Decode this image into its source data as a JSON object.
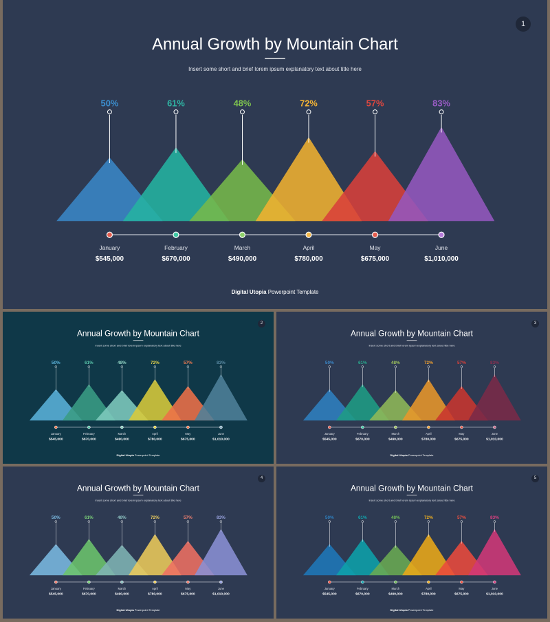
{
  "slides": [
    {
      "number": "1",
      "background": "#2e3a52",
      "title": "Annual Growth by Mountain Chart",
      "subtitle": "Insert some short and brief lorem ipsum explanatory text about title here",
      "footer_bold": "Digital Utopia",
      "footer_rest": " Powerpoint Template",
      "pct_colors": [
        "#3c8fcf",
        "#2fb5a4",
        "#7cc04f",
        "#f2b234",
        "#e0473f",
        "#9b5cc6"
      ],
      "tri_colors": [
        "#3a86c6",
        "#24b3a0",
        "#76b84a",
        "#f0b030",
        "#d8403a",
        "#9458be"
      ],
      "dot_colors": [
        "#e35b4d",
        "#3fc7a4",
        "#8dd06a",
        "#f5b84a",
        "#e35b4d",
        "#b57ad9"
      ],
      "chart_data": {
        "type": "area",
        "categories": [
          "January",
          "February",
          "March",
          "April",
          "May",
          "June"
        ],
        "values_pct": [
          50,
          61,
          48,
          72,
          57,
          83
        ],
        "percent_labels": [
          "50%",
          "61%",
          "48%",
          "72%",
          "57%",
          "83%"
        ],
        "amounts": [
          "$545,000",
          "$670,000",
          "$490,000",
          "$780,000",
          "$675,000",
          "$1,010,000"
        ],
        "ylim": [
          0,
          100
        ]
      }
    },
    {
      "number": "2",
      "background": "#0f3848",
      "title": "Annual Growth by Mountain Chart",
      "subtitle": "Insert some short and brief lorem ipsum explanatory text about title here",
      "footer_bold": "Digital Utopia",
      "footer_rest": " Powerpoint Template",
      "pct_colors": [
        "#5ab0d8",
        "#58c2a8",
        "#8fd1c2",
        "#e3d24a",
        "#f07a50",
        "#5a8aa4"
      ],
      "tri_colors": [
        "#5ab0d8",
        "#3a9c84",
        "#7ec9bd",
        "#d8c93a",
        "#ee7048",
        "#4f7f98"
      ],
      "dot_colors": [
        "#f07a50",
        "#58c2a8",
        "#8fd1c2",
        "#e3d24a",
        "#f07a50",
        "#8fb4c8"
      ],
      "chart_data": {
        "type": "area",
        "categories": [
          "January",
          "February",
          "March",
          "April",
          "May",
          "June"
        ],
        "values_pct": [
          50,
          61,
          48,
          72,
          57,
          83
        ],
        "percent_labels": [
          "50%",
          "61%",
          "48%",
          "72%",
          "57%",
          "83%"
        ],
        "amounts": [
          "$545,000",
          "$670,000",
          "$490,000",
          "$780,000",
          "$675,000",
          "$1,010,000"
        ],
        "ylim": [
          0,
          100
        ]
      }
    },
    {
      "number": "3",
      "background": "#2e3a52",
      "title": "Annual Growth by Mountain Chart",
      "subtitle": "Insert some short and brief lorem ipsum explanatory text about title here",
      "footer_bold": "Digital Utopia",
      "footer_rest": " Powerpoint Template",
      "pct_colors": [
        "#3a86c6",
        "#2aa98e",
        "#9cc05c",
        "#f0a030",
        "#d8403a",
        "#8a3050"
      ],
      "tri_colors": [
        "#2f7fbf",
        "#1f9c84",
        "#90b858",
        "#e8962a",
        "#c8352f",
        "#7a2a48"
      ],
      "dot_colors": [
        "#e35b4d",
        "#3fc7a4",
        "#9cc05c",
        "#f0a030",
        "#e35b4d",
        "#c86a8a"
      ],
      "chart_data": {
        "type": "area",
        "categories": [
          "January",
          "February",
          "March",
          "April",
          "May",
          "June"
        ],
        "values_pct": [
          50,
          61,
          48,
          72,
          57,
          83
        ],
        "percent_labels": [
          "50%",
          "61%",
          "48%",
          "72%",
          "57%",
          "83%"
        ],
        "amounts": [
          "$545,000",
          "$670,000",
          "$490,000",
          "$780,000",
          "$675,000",
          "$1,010,000"
        ],
        "ylim": [
          0,
          100
        ]
      }
    },
    {
      "number": "4",
      "background": "#2e3a52",
      "title": "Annual Growth by Mountain Chart",
      "subtitle": "Insert some short and brief lorem ipsum explanatory text about title here",
      "footer_bold": "Digital Utopia",
      "footer_rest": " Powerpoint Template",
      "pct_colors": [
        "#7ab8e0",
        "#7cd27a",
        "#8cc0c0",
        "#f0d060",
        "#f08070",
        "#9aa4e0"
      ],
      "tri_colors": [
        "#7ab8e0",
        "#6cc46c",
        "#80b4b4",
        "#ecc95a",
        "#ee7062",
        "#8a90d4"
      ],
      "dot_colors": [
        "#f08070",
        "#7cd27a",
        "#8cc0c0",
        "#f0d060",
        "#f08070",
        "#9aa4e0"
      ],
      "chart_data": {
        "type": "area",
        "categories": [
          "January",
          "February",
          "March",
          "April",
          "May",
          "June"
        ],
        "values_pct": [
          50,
          61,
          48,
          72,
          57,
          83
        ],
        "percent_labels": [
          "50%",
          "61%",
          "48%",
          "72%",
          "57%",
          "83%"
        ],
        "amounts": [
          "$545,000",
          "$670,000",
          "$490,000",
          "$780,000",
          "$675,000",
          "$1,010,000"
        ],
        "ylim": [
          0,
          100
        ]
      }
    },
    {
      "number": "5",
      "background": "#2e3a52",
      "title": "Annual Growth by Mountain Chart",
      "subtitle": "Insert some short and brief lorem ipsum explanatory text about title here",
      "footer_bold": "Digital Utopia",
      "footer_rest": " Powerpoint Template",
      "pct_colors": [
        "#2f7fbf",
        "#10a7b0",
        "#70b858",
        "#f0b020",
        "#f05040",
        "#d84080"
      ],
      "tri_colors": [
        "#1f78b8",
        "#0ea0aa",
        "#6aaa52",
        "#eaa818",
        "#ea4a3c",
        "#d03878"
      ],
      "dot_colors": [
        "#f05040",
        "#10a7b0",
        "#70b858",
        "#f0b020",
        "#f05040",
        "#d84080"
      ],
      "chart_data": {
        "type": "area",
        "categories": [
          "January",
          "February",
          "March",
          "April",
          "May",
          "June"
        ],
        "values_pct": [
          50,
          61,
          48,
          72,
          57,
          83
        ],
        "percent_labels": [
          "50%",
          "61%",
          "48%",
          "72%",
          "57%",
          "83%"
        ],
        "amounts": [
          "$545,000",
          "$670,000",
          "$490,000",
          "$780,000",
          "$675,000",
          "$1,010,000"
        ],
        "ylim": [
          0,
          100
        ]
      }
    }
  ]
}
